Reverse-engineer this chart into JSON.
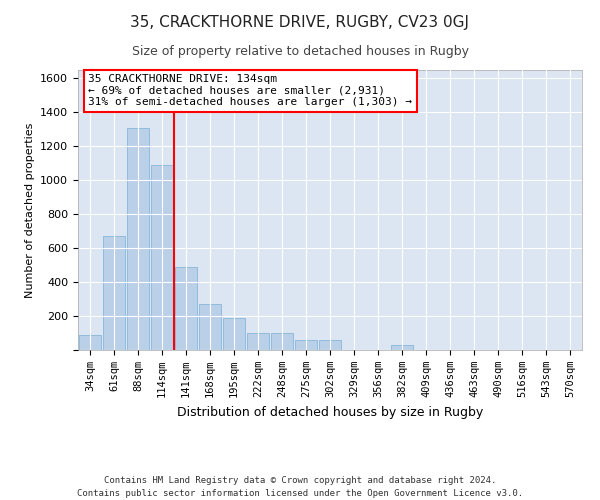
{
  "title1": "35, CRACKTHORNE DRIVE, RUGBY, CV23 0GJ",
  "title2": "Size of property relative to detached houses in Rugby",
  "xlabel": "Distribution of detached houses by size in Rugby",
  "ylabel": "Number of detached properties",
  "footer": "Contains HM Land Registry data © Crown copyright and database right 2024.\nContains public sector information licensed under the Open Government Licence v3.0.",
  "bin_labels": [
    "34sqm",
    "61sqm",
    "88sqm",
    "114sqm",
    "141sqm",
    "168sqm",
    "195sqm",
    "222sqm",
    "248sqm",
    "275sqm",
    "302sqm",
    "329sqm",
    "356sqm",
    "382sqm",
    "409sqm",
    "436sqm",
    "463sqm",
    "490sqm",
    "516sqm",
    "543sqm",
    "570sqm"
  ],
  "bar_values": [
    90,
    670,
    1310,
    1090,
    490,
    270,
    190,
    100,
    100,
    60,
    60,
    0,
    0,
    30,
    0,
    0,
    0,
    0,
    0,
    0,
    0
  ],
  "bar_color": "#bad0e8",
  "bar_edge_color": "#7aafd4",
  "vline_x_index": 3.5,
  "annotation_text": "35 CRACKTHORNE DRIVE: 134sqm\n← 69% of detached houses are smaller (2,931)\n31% of semi-detached houses are larger (1,303) →",
  "annotation_box_color": "white",
  "annotation_box_edgecolor": "red",
  "vline_color": "red",
  "ylim": [
    0,
    1650
  ],
  "yticks": [
    0,
    200,
    400,
    600,
    800,
    1000,
    1200,
    1400,
    1600
  ],
  "plot_bg_color": "#dce6f2",
  "grid_color": "white"
}
